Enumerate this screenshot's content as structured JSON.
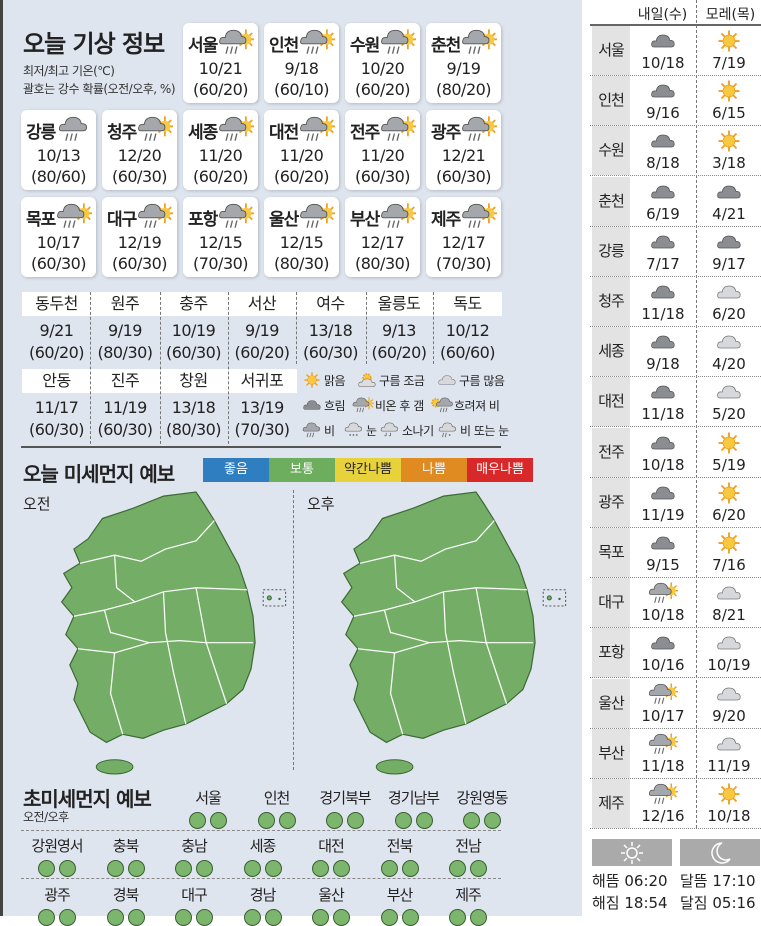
{
  "colors": {
    "panel": "#dfe5ef",
    "good": "#2e7ec0",
    "normal": "#6cae5e",
    "slightly_bad": "#e8d23c",
    "bad": "#e08a22",
    "very_bad": "#d9282a",
    "dot": "#7cb56c"
  },
  "header": {
    "title": "오늘 기상 정보",
    "note1": "최저/최고 기온(℃)",
    "note2": "괄호는 강수 확률(오전/오후, %)"
  },
  "cards": [
    {
      "name": "서울",
      "temp": "10/21",
      "rain": "(60/20)",
      "icon": "cloud-rain-sun-icon"
    },
    {
      "name": "인천",
      "temp": "9/18",
      "rain": "(60/10)",
      "icon": "cloud-rain-sun-icon"
    },
    {
      "name": "수원",
      "temp": "10/20",
      "rain": "(60/20)",
      "icon": "cloud-rain-sun-icon"
    },
    {
      "name": "춘천",
      "temp": "9/19",
      "rain": "(80/20)",
      "icon": "cloud-rain-sun-icon"
    },
    {
      "name": "강릉",
      "temp": "10/13",
      "rain": "(80/60)",
      "icon": "cloud-rain-icon"
    },
    {
      "name": "청주",
      "temp": "12/20",
      "rain": "(60/30)",
      "icon": "cloud-rain-sun-icon"
    },
    {
      "name": "세종",
      "temp": "11/20",
      "rain": "(60/20)",
      "icon": "cloud-rain-sun-icon"
    },
    {
      "name": "대전",
      "temp": "11/20",
      "rain": "(60/20)",
      "icon": "cloud-rain-sun-icon"
    },
    {
      "name": "전주",
      "temp": "11/20",
      "rain": "(60/30)",
      "icon": "cloud-rain-sun-icon"
    },
    {
      "name": "광주",
      "temp": "12/21",
      "rain": "(60/30)",
      "icon": "cloud-rain-sun-icon"
    },
    {
      "name": "목포",
      "temp": "10/17",
      "rain": "(60/30)",
      "icon": "cloud-rain-sun-icon"
    },
    {
      "name": "대구",
      "temp": "12/19",
      "rain": "(60/30)",
      "icon": "cloud-rain-sun-icon"
    },
    {
      "name": "포항",
      "temp": "12/15",
      "rain": "(70/30)",
      "icon": "cloud-rain-sun-icon"
    },
    {
      "name": "울산",
      "temp": "12/15",
      "rain": "(80/30)",
      "icon": "cloud-rain-sun-icon"
    },
    {
      "name": "부산",
      "temp": "12/17",
      "rain": "(80/30)",
      "icon": "cloud-rain-sun-icon"
    },
    {
      "name": "제주",
      "temp": "12/17",
      "rain": "(70/30)",
      "icon": "cloud-rain-sun-icon"
    }
  ],
  "cities": [
    {
      "name": "동두천",
      "temp": "9/21",
      "rain": "(60/20)"
    },
    {
      "name": "원주",
      "temp": "9/19",
      "rain": "(80/30)"
    },
    {
      "name": "충주",
      "temp": "10/19",
      "rain": "(60/30)"
    },
    {
      "name": "서산",
      "temp": "9/19",
      "rain": "(60/20)"
    },
    {
      "name": "여수",
      "temp": "13/18",
      "rain": "(60/30)"
    },
    {
      "name": "울릉도",
      "temp": "9/13",
      "rain": "(60/20)"
    },
    {
      "name": "독도",
      "temp": "10/12",
      "rain": "(60/60)"
    },
    {
      "name": "안동",
      "temp": "11/17",
      "rain": "(60/30)"
    },
    {
      "name": "진주",
      "temp": "11/19",
      "rain": "(60/30)"
    },
    {
      "name": "창원",
      "temp": "13/18",
      "rain": "(80/30)"
    },
    {
      "name": "서귀포",
      "temp": "13/19",
      "rain": "(70/30)"
    }
  ],
  "legend": [
    {
      "label": "맑음",
      "icon": "sun-icon"
    },
    {
      "label": "구름 조금",
      "icon": "sun-cloud-icon"
    },
    {
      "label": "구름 많음",
      "icon": "light-cloud-icon"
    },
    {
      "label": "흐림",
      "icon": "cloud-icon"
    },
    {
      "label": "비온 후 갬",
      "icon": "cloud-rain-sun-icon"
    },
    {
      "label": "흐려져 비",
      "icon": "sun-cloud-rain-icon"
    },
    {
      "label": "비",
      "icon": "cloud-rain-icon"
    },
    {
      "label": "눈",
      "icon": "cloud-snow-icon"
    },
    {
      "label": "소나기",
      "icon": "cloud-shower-icon"
    },
    {
      "label": "비 또는 눈",
      "icon": "cloud-sleet-icon"
    }
  ],
  "dust": {
    "title": "오늘 미세먼지 예보",
    "levels": [
      "좋음",
      "보통",
      "약간나쁨",
      "나쁨",
      "매우나쁨"
    ],
    "am": "오전",
    "pm": "오후",
    "am_level": "보통",
    "pm_level": "보통"
  },
  "ultrafine": {
    "title": "초미세먼지 예보",
    "sub": "오전/오후",
    "regions": [
      {
        "name": "서울",
        "am": "보통",
        "pm": "보통"
      },
      {
        "name": "인천",
        "am": "보통",
        "pm": "보통"
      },
      {
        "name": "경기북부",
        "am": "보통",
        "pm": "보통"
      },
      {
        "name": "경기남부",
        "am": "보통",
        "pm": "보통"
      },
      {
        "name": "강원영동",
        "am": "보통",
        "pm": "보통"
      },
      {
        "name": "강원영서",
        "am": "보통",
        "pm": "보통"
      },
      {
        "name": "충북",
        "am": "보통",
        "pm": "보통"
      },
      {
        "name": "충남",
        "am": "보통",
        "pm": "보통"
      },
      {
        "name": "세종",
        "am": "보통",
        "pm": "보통"
      },
      {
        "name": "대전",
        "am": "보통",
        "pm": "보통"
      },
      {
        "name": "전북",
        "am": "보통",
        "pm": "보통"
      },
      {
        "name": "전남",
        "am": "보통",
        "pm": "보통"
      },
      {
        "name": "광주",
        "am": "보통",
        "pm": "보통"
      },
      {
        "name": "경북",
        "am": "보통",
        "pm": "보통"
      },
      {
        "name": "대구",
        "am": "보통",
        "pm": "보통"
      },
      {
        "name": "경남",
        "am": "보통",
        "pm": "보통"
      },
      {
        "name": "울산",
        "am": "보통",
        "pm": "보통"
      },
      {
        "name": "부산",
        "am": "보통",
        "pm": "보통"
      },
      {
        "name": "제주",
        "am": "보통",
        "pm": "보통"
      }
    ]
  },
  "forecast": {
    "tomorrow": "내일(수)",
    "day_after": "모레(목)",
    "rows": [
      {
        "name": "서울",
        "t1": "10/18",
        "i1": "cloud-icon",
        "t2": "7/19",
        "i2": "sun-icon"
      },
      {
        "name": "인천",
        "t1": "9/16",
        "i1": "cloud-icon",
        "t2": "6/15",
        "i2": "sun-icon"
      },
      {
        "name": "수원",
        "t1": "8/18",
        "i1": "cloud-icon",
        "t2": "3/18",
        "i2": "sun-icon"
      },
      {
        "name": "춘천",
        "t1": "6/19",
        "i1": "cloud-icon",
        "t2": "4/21",
        "i2": "cloud-icon"
      },
      {
        "name": "강릉",
        "t1": "7/17",
        "i1": "cloud-icon",
        "t2": "9/17",
        "i2": "cloud-icon"
      },
      {
        "name": "청주",
        "t1": "11/18",
        "i1": "cloud-icon",
        "t2": "6/20",
        "i2": "light-cloud-icon"
      },
      {
        "name": "세종",
        "t1": "9/18",
        "i1": "cloud-icon",
        "t2": "4/20",
        "i2": "light-cloud-icon"
      },
      {
        "name": "대전",
        "t1": "11/18",
        "i1": "cloud-icon",
        "t2": "5/20",
        "i2": "light-cloud-icon"
      },
      {
        "name": "전주",
        "t1": "10/18",
        "i1": "cloud-icon",
        "t2": "5/19",
        "i2": "sun-icon"
      },
      {
        "name": "광주",
        "t1": "11/19",
        "i1": "cloud-icon",
        "t2": "6/20",
        "i2": "sun-icon"
      },
      {
        "name": "목포",
        "t1": "9/15",
        "i1": "cloud-icon",
        "t2": "7/16",
        "i2": "sun-icon"
      },
      {
        "name": "대구",
        "t1": "10/18",
        "i1": "cloud-rain-sun-icon",
        "t2": "8/21",
        "i2": "light-cloud-icon"
      },
      {
        "name": "포항",
        "t1": "10/16",
        "i1": "cloud-icon",
        "t2": "10/19",
        "i2": "light-cloud-icon"
      },
      {
        "name": "울산",
        "t1": "10/17",
        "i1": "cloud-rain-sun-icon",
        "t2": "9/20",
        "i2": "light-cloud-icon"
      },
      {
        "name": "부산",
        "t1": "11/18",
        "i1": "cloud-rain-sun-icon",
        "t2": "11/19",
        "i2": "light-cloud-icon"
      },
      {
        "name": "제주",
        "t1": "12/16",
        "i1": "cloud-rain-sun-icon",
        "t2": "10/18",
        "i2": "sun-icon"
      }
    ]
  },
  "sun_moon": {
    "sunrise": "해뜸 06:20",
    "sunset": "해짐 18:54",
    "moonrise": "달뜸 17:10",
    "moonset": "달짐 05:16"
  }
}
